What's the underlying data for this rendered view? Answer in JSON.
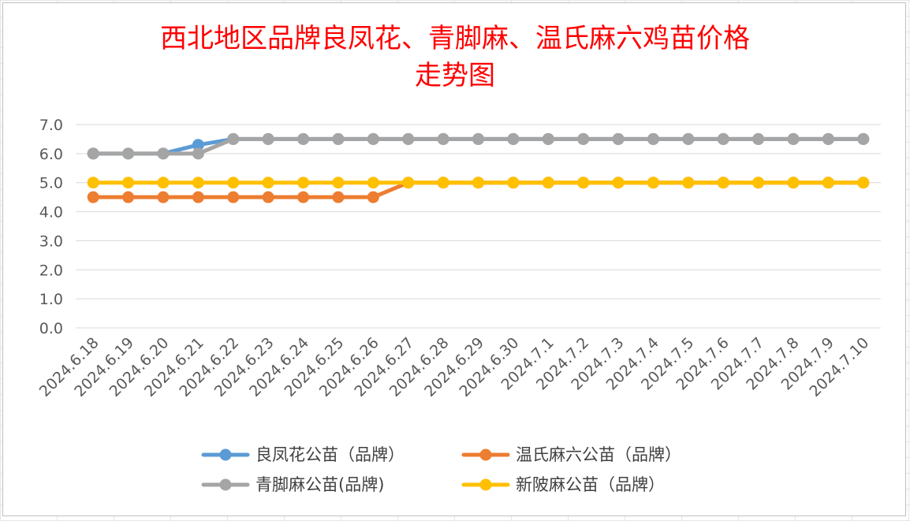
{
  "chart_data": {
    "type": "line",
    "title": "西北地区品牌良凤花、青脚麻、温氏麻六鸡苗价格走势图",
    "title_lines": [
      "西北地区品牌良凤花、青脚麻、温氏麻六鸡苗价格",
      "走势图"
    ],
    "xlabel": "",
    "ylabel": "",
    "ylim": [
      0,
      7
    ],
    "yticks": [
      "0.0",
      "1.0",
      "2.0",
      "3.0",
      "4.0",
      "5.0",
      "6.0",
      "7.0"
    ],
    "grid": true,
    "legend_position": "bottom",
    "categories": [
      "2024.6.18",
      "2024.6.19",
      "2024.6.20",
      "2024.6.21",
      "2024.6.22",
      "2024.6.23",
      "2024.6.24",
      "2024.6.25",
      "2024.6.26",
      "2024.6.27",
      "2024.6.28",
      "2024.6.29",
      "2024.6.30",
      "2024.7.1",
      "2024.7.2",
      "2024.7.3",
      "2024.7.4",
      "2024.7.5",
      "2024.7.6",
      "2024.7.7",
      "2024.7.8",
      "2024.7.9",
      "2024.7.10"
    ],
    "series": [
      {
        "name": "良凤花公苗（品牌）",
        "color": "#5b9bd5",
        "values": [
          6.0,
          6.0,
          6.0,
          6.3,
          6.5,
          6.5,
          6.5,
          6.5,
          6.5,
          6.5,
          6.5,
          6.5,
          6.5,
          6.5,
          6.5,
          6.5,
          6.5,
          6.5,
          6.5,
          6.5,
          6.5,
          6.5,
          6.5
        ]
      },
      {
        "name": "温氏麻六公苗（品牌）",
        "color": "#ed7d31",
        "values": [
          4.5,
          4.5,
          4.5,
          4.5,
          4.5,
          4.5,
          4.5,
          4.5,
          4.5,
          5.0,
          5.0,
          5.0,
          5.0,
          5.0,
          5.0,
          5.0,
          5.0,
          5.0,
          5.0,
          5.0,
          5.0,
          5.0,
          5.0
        ]
      },
      {
        "name": "青脚麻公苗(品牌)",
        "color": "#a5a5a5",
        "values": [
          6.0,
          6.0,
          6.0,
          6.0,
          6.5,
          6.5,
          6.5,
          6.5,
          6.5,
          6.5,
          6.5,
          6.5,
          6.5,
          6.5,
          6.5,
          6.5,
          6.5,
          6.5,
          6.5,
          6.5,
          6.5,
          6.5,
          6.5
        ]
      },
      {
        "name": "新陂麻公苗（品牌）",
        "color": "#ffc000",
        "values": [
          5.0,
          5.0,
          5.0,
          5.0,
          5.0,
          5.0,
          5.0,
          5.0,
          5.0,
          5.0,
          5.0,
          5.0,
          5.0,
          5.0,
          5.0,
          5.0,
          5.0,
          5.0,
          5.0,
          5.0,
          5.0,
          5.0,
          5.0
        ]
      }
    ],
    "draw_order": [
      0,
      2,
      1,
      3
    ],
    "legend_order": [
      0,
      1,
      2,
      3
    ]
  }
}
